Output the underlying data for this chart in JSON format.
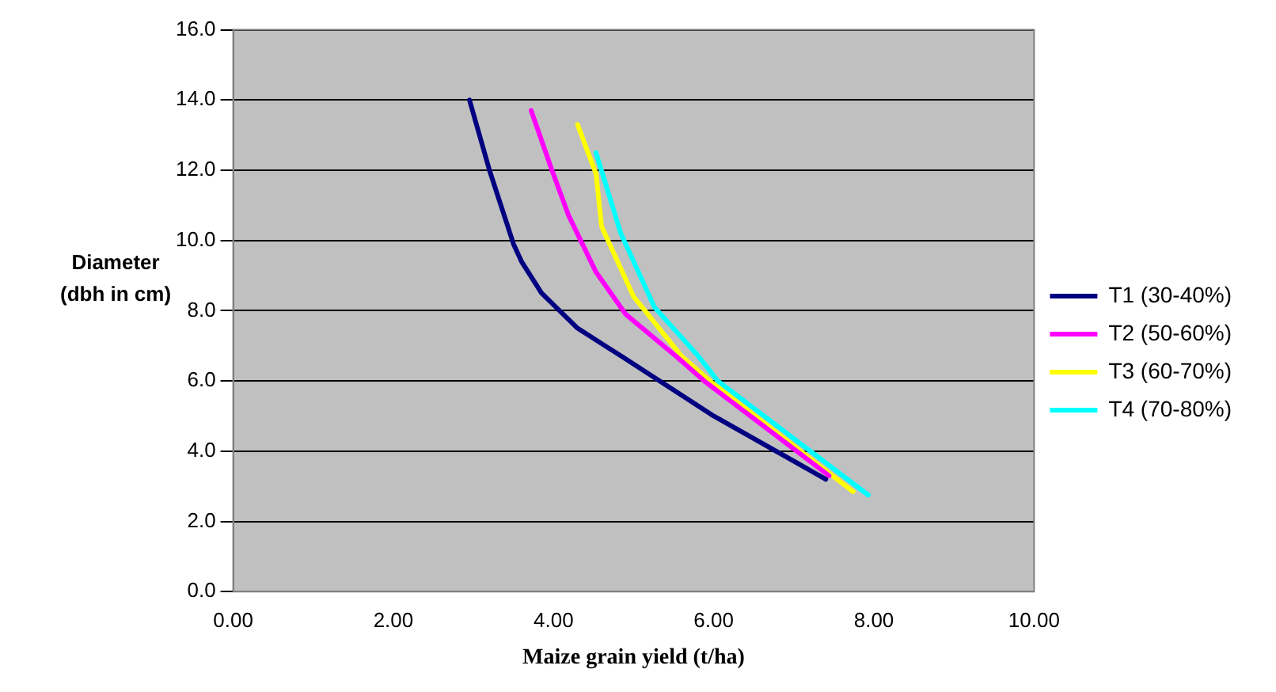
{
  "chart_data": {
    "type": "line",
    "xlabel": "Maize grain yield (t/ha)",
    "ylabel": "Diameter\n(dbh in cm)",
    "xlim": [
      0,
      10
    ],
    "xticks": [
      {
        "value": 0,
        "label": "0.00"
      },
      {
        "value": 2,
        "label": "2.00"
      },
      {
        "value": 4,
        "label": "4.00"
      },
      {
        "value": 6,
        "label": "6.00"
      },
      {
        "value": 8,
        "label": "8.00"
      },
      {
        "value": 10,
        "label": "10.00"
      }
    ],
    "ylim": [
      0,
      16
    ],
    "yticks": [
      {
        "value": 0,
        "label": "0.0"
      },
      {
        "value": 2,
        "label": "2.0"
      },
      {
        "value": 4,
        "label": "4.0"
      },
      {
        "value": 6,
        "label": "6.0"
      },
      {
        "value": 8,
        "label": "8.0"
      },
      {
        "value": 10,
        "label": "10.0"
      },
      {
        "value": 12,
        "label": "12.0"
      },
      {
        "value": 14,
        "label": "14.0"
      },
      {
        "value": 16,
        "label": "16.0"
      }
    ],
    "grid": "y",
    "legend": "right",
    "marker": "none",
    "line_style": "solid",
    "series": [
      {
        "name": "T1 (30-40%)",
        "color": "#000080",
        "x": [
          2.95,
          3.2,
          3.5,
          3.6,
          3.85,
          4.3,
          4.85,
          6.0,
          7.4
        ],
        "values": [
          14.0,
          12.0,
          9.9,
          9.4,
          8.5,
          7.5,
          6.7,
          5.0,
          3.2
        ]
      },
      {
        "name": "T2 (50-60%)",
        "color": "#ff00ff",
        "x": [
          3.72,
          3.98,
          4.19,
          4.53,
          4.9,
          5.53,
          5.88,
          7.44
        ],
        "values": [
          13.7,
          12.0,
          10.7,
          9.1,
          7.9,
          6.7,
          6.0,
          3.3
        ]
      },
      {
        "name": "T3 (60-70%)",
        "color": "#ffff00",
        "x": [
          4.3,
          4.53,
          4.6,
          5.0,
          5.6,
          5.95,
          7.74
        ],
        "values": [
          13.3,
          11.9,
          10.4,
          8.4,
          6.7,
          6.0,
          2.85
        ]
      },
      {
        "name": "T4 (70-80%)",
        "color": "#00ffff",
        "x": [
          4.53,
          4.84,
          5.26,
          5.81,
          6.05,
          7.93
        ],
        "values": [
          12.5,
          10.2,
          8.1,
          6.7,
          6.0,
          2.75
        ]
      }
    ]
  }
}
